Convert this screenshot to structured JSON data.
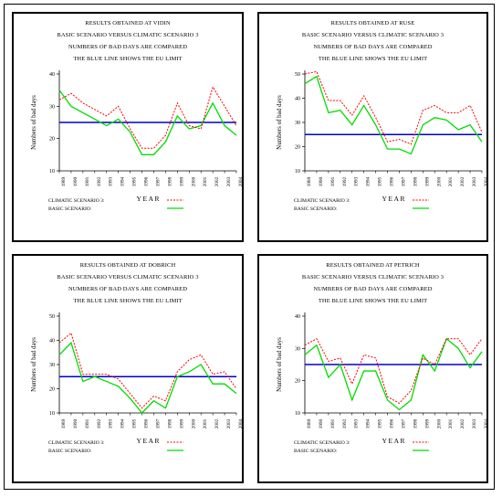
{
  "charts": [
    {
      "title_lines": [
        "RESULTS OBTAINED AT VIDIN",
        "BASIC SCENARIO VERSUS CLIMATIC SCENARIO 3",
        "NUMBERS OF BAD DAYS ARE COMPARED",
        "THE BLUE LINE SHOWS THE EU LIMIT"
      ],
      "legend": [
        "CLIMATIC SCENARIO 3:",
        "BASIC SCENARIO:"
      ]
    },
    {
      "title_lines": [
        "RESULTS OBTAINED AT RUSE",
        "BASIC SCENARIO VERSUS CLIMATIC SCENARIO 3",
        "NUMBERS OF BAD DAYS ARE COMPARED",
        "THE BLUE LINE SHOWS THE EU LIMIT"
      ],
      "legend": [
        "CLIMATIC SCENARIO 3:",
        "BASIC SCENARIO:"
      ]
    },
    {
      "title_lines": [
        "RESULTS OBTAINED AT DOBRICH",
        "BASIC SCENARIO VERSUS CLIMATIC SCENARIO 3",
        "NUMBERS OF BAD DAYS ARE COMPARED",
        "THE BLUE LINE SHOWS THE EU LIMIT"
      ],
      "legend": [
        "CLIMATIC SCENARIO 3:",
        "BASIC SCENARIO:"
      ]
    },
    {
      "title_lines": [
        "RESULTS OBTAINED AT PETRICH",
        "BASIC SCENARIO VERSUS CLIMATIC SCENARIO 3",
        "NUMBERS OF BAD DAYS ARE COMPARED",
        "THE BLUE LINE SHOWS THE EU LIMIT"
      ],
      "legend": [
        "CLIMATIC SCENARIO 3:",
        "BASIC SCENARIO:"
      ]
    }
  ],
  "colors": {
    "climatic": "#ff0000",
    "basic": "#00dd00",
    "eu_limit": "#0000cc"
  },
  "chart_data": [
    {
      "type": "line",
      "title": "RESULTS OBTAINED AT VIDIN",
      "xlabel": "Y E A R",
      "ylabel": "Numbers of bad days",
      "x": [
        "1989",
        "1990",
        "1991",
        "1992",
        "1993",
        "1994",
        "1995",
        "1996",
        "1997",
        "1998",
        "1999",
        "2000",
        "2001",
        "2002",
        "2003",
        "2004"
      ],
      "ylim": [
        10,
        40
      ],
      "yticks": [
        10,
        20,
        30,
        40
      ],
      "series": [
        {
          "name": "CLIMATIC SCENARIO 3:",
          "values": [
            32,
            34,
            31,
            29,
            27,
            30,
            23,
            17,
            17,
            21,
            31,
            24,
            23,
            36,
            30,
            24
          ]
        },
        {
          "name": "BASIC SCENARIO:",
          "values": [
            35,
            30,
            28,
            26,
            24,
            26,
            22,
            15,
            15,
            19,
            27,
            23,
            24,
            31,
            24,
            21
          ]
        }
      ],
      "eu_limit": 25,
      "grid": false
    },
    {
      "type": "line",
      "title": "RESULTS OBTAINED AT RUSE",
      "xlabel": "Y E A R",
      "ylabel": "Numbers of bad days",
      "x": [
        "1989",
        "1990",
        "1991",
        "1992",
        "1993",
        "1994",
        "1995",
        "1996",
        "1997",
        "1998",
        "1999",
        "2000",
        "2001",
        "2002",
        "2003",
        "2004"
      ],
      "ylim": [
        10,
        50
      ],
      "yticks": [
        10,
        20,
        30,
        40,
        50
      ],
      "series": [
        {
          "name": "CLIMATIC SCENARIO 3:",
          "values": [
            50,
            51,
            39,
            39,
            33,
            41,
            32,
            22,
            23,
            21,
            35,
            37,
            34,
            34,
            37,
            26
          ]
        },
        {
          "name": "BASIC SCENARIO:",
          "values": [
            46,
            49,
            34,
            35,
            29,
            37,
            29,
            19,
            19,
            17,
            29,
            32,
            31,
            27,
            29,
            22
          ]
        }
      ],
      "eu_limit": 25,
      "grid": false
    },
    {
      "type": "line",
      "title": "RESULTS OBTAINED AT DOBRICH",
      "xlabel": "Y E A R",
      "ylabel": "Numbers of bad days",
      "x": [
        "1989",
        "1990",
        "1991",
        "1992",
        "1993",
        "1994",
        "1995",
        "1996",
        "1997",
        "1998",
        "1999",
        "2000",
        "2001",
        "2002",
        "2003",
        "2004"
      ],
      "ylim": [
        10,
        50
      ],
      "yticks": [
        10,
        20,
        30,
        40,
        50
      ],
      "series": [
        {
          "name": "CLIMATIC SCENARIO 3:",
          "values": [
            39,
            43,
            26,
            26,
            26,
            24,
            18,
            12,
            17,
            15,
            27,
            32,
            34,
            26,
            27,
            20
          ]
        },
        {
          "name": "BASIC SCENARIO:",
          "values": [
            34,
            39,
            23,
            25,
            23,
            21,
            16,
            10,
            15,
            12,
            25,
            27,
            30,
            22,
            22,
            18
          ]
        }
      ],
      "eu_limit": 25,
      "grid": false
    },
    {
      "type": "line",
      "title": "RESULTS OBTAINED AT PETRICH",
      "xlabel": "Y E A R",
      "ylabel": "Numbers of bad days",
      "x": [
        "1989",
        "1990",
        "1991",
        "1992",
        "1993",
        "1994",
        "1995",
        "1996",
        "1997",
        "1998",
        "1999",
        "2000",
        "2001",
        "2002",
        "2003",
        "2004"
      ],
      "ylim": [
        10,
        40
      ],
      "yticks": [
        10,
        20,
        30,
        40
      ],
      "series": [
        {
          "name": "CLIMATIC SCENARIO 3:",
          "values": [
            31,
            33,
            26,
            27,
            19,
            28,
            27,
            15,
            13,
            17,
            27,
            25,
            33,
            33,
            28,
            33
          ]
        },
        {
          "name": "BASIC SCENARIO:",
          "values": [
            28,
            31,
            21,
            25,
            14,
            23,
            23,
            14,
            11,
            14,
            28,
            23,
            33,
            30,
            24,
            29
          ]
        }
      ],
      "eu_limit": 25,
      "grid": false
    }
  ]
}
